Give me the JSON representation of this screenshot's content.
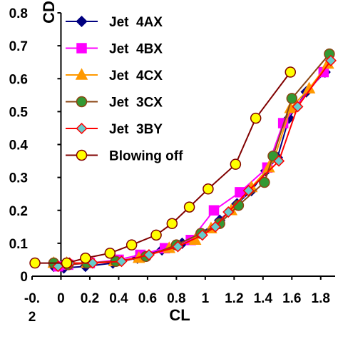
{
  "chart_data": {
    "type": "line",
    "xlabel": "CL",
    "ylabel": "CD",
    "xlim": [
      -0.2,
      1.9
    ],
    "ylim": [
      0,
      0.8
    ],
    "x_ticks": [
      "-0.\n2",
      "0",
      "0.2",
      "0.4",
      "0.6",
      "0.8",
      "1",
      "1.2",
      "1.4",
      "1.6",
      "1.8"
    ],
    "x_tick_values": [
      -0.2,
      0,
      0.2,
      0.4,
      0.6,
      0.8,
      1.0,
      1.2,
      1.4,
      1.6,
      1.8
    ],
    "y_ticks": [
      "0",
      "0.1",
      "0.2",
      "0.3",
      "0.4",
      "0.5",
      "0.6",
      "0.7",
      "0.8"
    ],
    "y_tick_values": [
      0,
      0.1,
      0.2,
      0.3,
      0.4,
      0.5,
      0.6,
      0.7,
      0.8
    ],
    "grid": false,
    "legend_position": "top-left",
    "series": [
      {
        "name": "Jet  4AX",
        "color": "#000080",
        "marker": "diamond",
        "fill": "#000080",
        "points": [
          [
            -0.05,
            0.03
          ],
          [
            0.02,
            0.025
          ],
          [
            0.17,
            0.03
          ],
          [
            0.36,
            0.04
          ],
          [
            0.53,
            0.055
          ],
          [
            0.7,
            0.08
          ],
          [
            0.84,
            0.1
          ],
          [
            0.97,
            0.13
          ],
          [
            1.1,
            0.17
          ],
          [
            1.22,
            0.22
          ],
          [
            1.32,
            0.26
          ],
          [
            1.42,
            0.32
          ],
          [
            1.5,
            0.36
          ],
          [
            1.58,
            0.48
          ],
          [
            1.7,
            0.56
          ],
          [
            1.83,
            0.62
          ]
        ]
      },
      {
        "name": "Jet  4BX",
        "color": "#FF00FF",
        "marker": "square",
        "fill": "#FF00FF",
        "points": [
          [
            -0.02,
            0.03
          ],
          [
            0.05,
            0.035
          ],
          [
            0.2,
            0.04
          ],
          [
            0.4,
            0.05
          ],
          [
            0.55,
            0.065
          ],
          [
            0.72,
            0.085
          ],
          [
            0.9,
            0.11
          ],
          [
            1.06,
            0.2
          ],
          [
            1.24,
            0.255
          ],
          [
            1.43,
            0.33
          ],
          [
            1.54,
            0.465
          ],
          [
            1.82,
            0.62
          ]
        ]
      },
      {
        "name": "Jet  4CX",
        "color": "#FF9900",
        "marker": "triangle",
        "fill": "#FF9900",
        "points": [
          [
            -0.05,
            0.04
          ],
          [
            0.04,
            0.04
          ],
          [
            0.18,
            0.04
          ],
          [
            0.37,
            0.045
          ],
          [
            0.54,
            0.055
          ],
          [
            0.75,
            0.085
          ],
          [
            0.93,
            0.11
          ],
          [
            1.04,
            0.145
          ],
          [
            1.18,
            0.2
          ],
          [
            1.32,
            0.27
          ],
          [
            1.44,
            0.33
          ],
          [
            1.48,
            0.36
          ],
          [
            1.59,
            0.51
          ],
          [
            1.72,
            0.57
          ],
          [
            1.85,
            0.645
          ]
        ]
      },
      {
        "name": "Jet  3CX",
        "color": "#8B4513",
        "marker": "circle",
        "fill": "#339933",
        "points": [
          [
            -0.05,
            0.04
          ],
          [
            0.05,
            0.035
          ],
          [
            0.18,
            0.04
          ],
          [
            0.38,
            0.045
          ],
          [
            0.59,
            0.06
          ],
          [
            0.8,
            0.095
          ],
          [
            0.97,
            0.13
          ],
          [
            1.1,
            0.16
          ],
          [
            1.23,
            0.215
          ],
          [
            1.41,
            0.285
          ],
          [
            1.47,
            0.365
          ],
          [
            1.6,
            0.54
          ],
          [
            1.86,
            0.675
          ]
        ]
      },
      {
        "name": "Jet  3BY",
        "color": "#FF0000",
        "marker": "diamond",
        "fill": "#66CCCC",
        "points": [
          [
            -0.02,
            0.03
          ],
          [
            0.06,
            0.04
          ],
          [
            0.22,
            0.04
          ],
          [
            0.42,
            0.045
          ],
          [
            0.61,
            0.065
          ],
          [
            0.81,
            0.09
          ],
          [
            0.98,
            0.125
          ],
          [
            1.07,
            0.15
          ],
          [
            1.16,
            0.195
          ],
          [
            1.3,
            0.26
          ],
          [
            1.51,
            0.35
          ],
          [
            1.64,
            0.515
          ],
          [
            1.87,
            0.655
          ]
        ]
      },
      {
        "name": "Blowing off",
        "color": "#800000",
        "marker": "circle",
        "fill": "#FFFF00",
        "points": [
          [
            -0.18,
            0.04
          ],
          [
            0.04,
            0.04
          ],
          [
            0.17,
            0.055
          ],
          [
            0.34,
            0.07
          ],
          [
            0.49,
            0.095
          ],
          [
            0.66,
            0.125
          ],
          [
            0.77,
            0.16
          ],
          [
            0.89,
            0.21
          ],
          [
            1.02,
            0.265
          ],
          [
            1.21,
            0.34
          ],
          [
            1.35,
            0.48
          ],
          [
            1.59,
            0.62
          ]
        ]
      }
    ]
  }
}
